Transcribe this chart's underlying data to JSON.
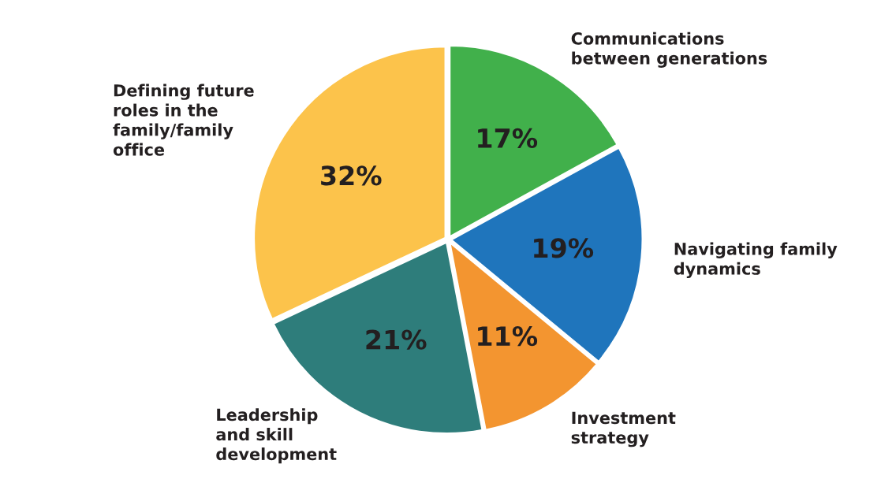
{
  "chart_data": {
    "type": "pie",
    "categories": [
      "Communications\nbetween generations",
      "Navigating family\ndynamics",
      "Investment\nstrategy",
      "Leadership\nand skill\ndevelopment",
      "Defining future\nroles in the\nfamily/family\noffice"
    ],
    "values": [
      17,
      19,
      11,
      21,
      32
    ],
    "colors": [
      "#41b04b",
      "#1f75bc",
      "#f39530",
      "#2e7d7b",
      "#fcc34b"
    ],
    "value_labels": [
      "17%",
      "19%",
      "11%",
      "21%",
      "32%"
    ]
  }
}
